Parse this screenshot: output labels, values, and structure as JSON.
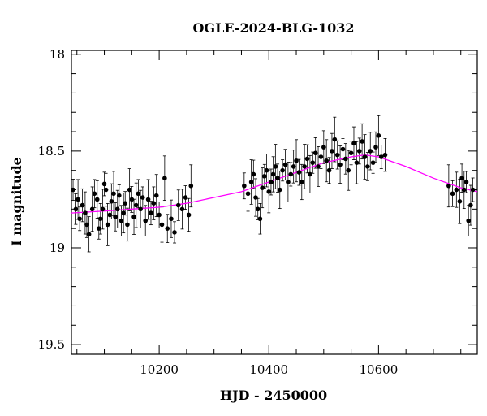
{
  "chart_data": {
    "type": "scatter",
    "title": "OGLE-2024-BLG-1032",
    "xlabel": "HJD - 2450000",
    "ylabel": "I magnitude",
    "xlim": [
      10040,
      10780
    ],
    "ylim": [
      19.55,
      17.98
    ],
    "y_inverted": true,
    "xticks": [
      10200,
      10400,
      10600
    ],
    "yticks": [
      18,
      18.5,
      19,
      19.5
    ],
    "ytick_labels": [
      "18",
      "18.5",
      "19",
      "19.5"
    ],
    "grid": false,
    "colors": {
      "points": "#000000",
      "model": "#ff00ff"
    },
    "model": {
      "name": "",
      "x": [
        10040,
        10100,
        10150,
        10200,
        10250,
        10300,
        10350,
        10400,
        10450,
        10500,
        10550,
        10575,
        10600,
        10650,
        10700,
        10750,
        10780
      ],
      "y": [
        18.82,
        18.81,
        18.8,
        18.79,
        18.77,
        18.74,
        18.71,
        18.66,
        18.61,
        18.56,
        18.53,
        18.52,
        18.53,
        18.58,
        18.64,
        18.69,
        18.71
      ]
    },
    "series": [
      {
        "name": "",
        "x": [
          10043,
          10048,
          10052,
          10055,
          10060,
          10065,
          10068,
          10072,
          10078,
          10082,
          10087,
          10090,
          10093,
          10097,
          10100,
          10103,
          10106,
          10110,
          10113,
          10117,
          10120,
          10124,
          10127,
          10131,
          10135,
          10138,
          10142,
          10146,
          10150,
          10154,
          10158,
          10162,
          10166,
          10170,
          10175,
          10180,
          10185,
          10190,
          10195,
          10200,
          10205,
          10210,
          10215,
          10222,
          10228,
          10235,
          10242,
          10248,
          10254,
          10258,
          10355,
          10362,
          10368,
          10372,
          10376,
          10380,
          10384,
          10388,
          10392,
          10396,
          10400,
          10404,
          10408,
          10412,
          10416,
          10420,
          10425,
          10430,
          10435,
          10440,
          10445,
          10450,
          10455,
          10460,
          10465,
          10470,
          10475,
          10480,
          10485,
          10490,
          10495,
          10500,
          10505,
          10510,
          10515,
          10520,
          10525,
          10530,
          10535,
          10540,
          10545,
          10550,
          10555,
          10560,
          10565,
          10570,
          10575,
          10580,
          10585,
          10590,
          10595,
          10600,
          10605,
          10612,
          10728,
          10735,
          10742,
          10748,
          10752,
          10756,
          10760,
          10764,
          10768,
          10772
        ],
        "y": [
          18.7,
          18.8,
          18.75,
          18.85,
          18.78,
          18.82,
          18.88,
          18.93,
          18.8,
          18.72,
          18.75,
          18.9,
          18.85,
          18.8,
          18.67,
          18.7,
          18.88,
          18.83,
          18.76,
          18.72,
          18.84,
          18.8,
          18.73,
          18.86,
          18.82,
          18.77,
          18.88,
          18.7,
          18.75,
          18.84,
          18.78,
          18.72,
          18.8,
          18.74,
          18.86,
          18.75,
          18.82,
          18.77,
          18.73,
          18.83,
          18.88,
          18.64,
          18.9,
          18.85,
          18.92,
          18.78,
          18.8,
          18.74,
          18.83,
          18.68,
          18.68,
          18.72,
          18.66,
          18.62,
          18.74,
          18.8,
          18.85,
          18.69,
          18.63,
          18.6,
          18.71,
          18.66,
          18.62,
          18.58,
          18.64,
          18.7,
          18.6,
          18.57,
          18.66,
          18.62,
          18.58,
          18.55,
          18.61,
          18.66,
          18.58,
          18.54,
          18.62,
          18.56,
          18.51,
          18.58,
          18.53,
          18.48,
          18.55,
          18.6,
          18.5,
          18.44,
          18.52,
          18.57,
          18.49,
          18.54,
          18.6,
          18.51,
          18.46,
          18.56,
          18.5,
          18.45,
          18.53,
          18.58,
          18.5,
          18.56,
          18.48,
          18.42,
          18.53,
          18.52,
          18.68,
          18.72,
          18.7,
          18.76,
          18.64,
          18.7,
          18.66,
          18.86,
          18.78,
          18.7
        ]
      }
    ]
  }
}
